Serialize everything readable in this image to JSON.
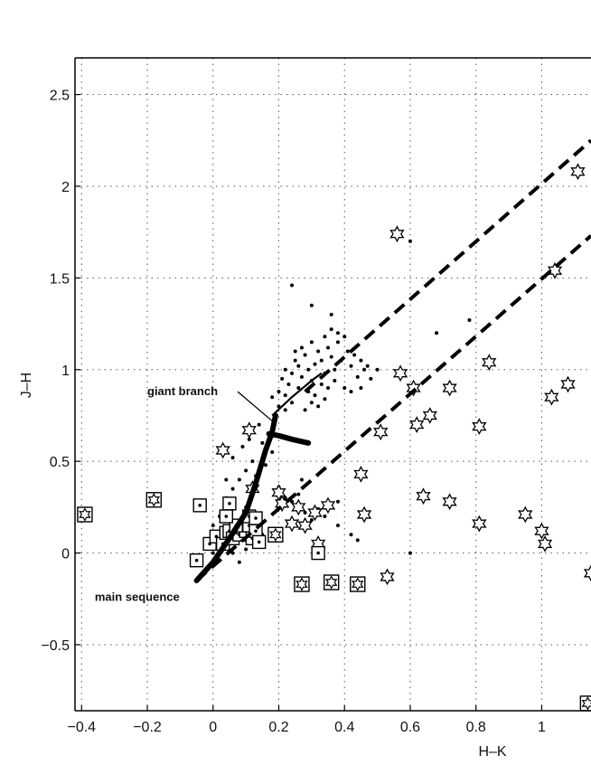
{
  "chart_data": {
    "type": "scatter",
    "xlabel": "H–K",
    "ylabel": "J–H",
    "xlim": [
      -0.42,
      1.15
    ],
    "ylim": [
      -0.86,
      2.7
    ],
    "grid": true,
    "x_ticks": [
      {
        "value": -0.4,
        "label": "−0.4"
      },
      {
        "value": -0.2,
        "label": "−0.2"
      },
      {
        "value": 0,
        "label": "0"
      },
      {
        "value": 0.2,
        "label": "0.2"
      },
      {
        "value": 0.4,
        "label": "0.4"
      },
      {
        "value": 0.6,
        "label": "0.6"
      },
      {
        "value": 0.8,
        "label": "0.8"
      },
      {
        "value": 1,
        "label": "1"
      }
    ],
    "y_ticks": [
      {
        "value": -0.5,
        "label": "−0.5"
      },
      {
        "value": 0,
        "label": "0"
      },
      {
        "value": 0.5,
        "label": "0.5"
      },
      {
        "value": 1,
        "label": "1"
      },
      {
        "value": 1.5,
        "label": "1.5"
      },
      {
        "value": 2,
        "label": "2"
      },
      {
        "value": 2.5,
        "label": "2.5"
      }
    ],
    "annotations": [
      {
        "text": "giant branch",
        "x": -0.2,
        "y": 0.86,
        "arrow_to": [
          0.18,
          0.72
        ]
      },
      {
        "text": "main sequence",
        "x": -0.36,
        "y": -0.26
      }
    ],
    "series": [
      {
        "marker": "dot",
        "points": [
          [
            0.24,
            1.46
          ],
          [
            0.3,
            1.35
          ],
          [
            0.36,
            1.3
          ],
          [
            0.6,
            1.7
          ],
          [
            0.78,
            1.27
          ],
          [
            0.68,
            1.2
          ],
          [
            0.6,
            0.0
          ],
          [
            0.18,
            0.85
          ],
          [
            0.2,
            0.88
          ],
          [
            0.21,
            0.95
          ],
          [
            0.22,
            1.0
          ],
          [
            0.23,
            0.92
          ],
          [
            0.24,
            0.98
          ],
          [
            0.25,
            1.05
          ],
          [
            0.26,
            1.02
          ],
          [
            0.27,
            0.96
          ],
          [
            0.28,
            1.08
          ],
          [
            0.29,
            1.0
          ],
          [
            0.3,
            0.94
          ],
          [
            0.31,
            1.03
          ],
          [
            0.32,
            1.1
          ],
          [
            0.33,
            1.05
          ],
          [
            0.34,
            0.98
          ],
          [
            0.35,
            1.12
          ],
          [
            0.36,
            1.07
          ],
          [
            0.37,
            1.0
          ],
          [
            0.38,
            1.15
          ],
          [
            0.39,
            1.05
          ],
          [
            0.4,
            1.18
          ],
          [
            0.41,
            1.1
          ],
          [
            0.42,
            1.02
          ],
          [
            0.43,
            1.08
          ],
          [
            0.44,
            0.96
          ],
          [
            0.45,
            1.05
          ],
          [
            0.46,
            1.0
          ],
          [
            0.47,
            1.02
          ],
          [
            0.48,
            0.95
          ],
          [
            0.5,
            1.0
          ],
          [
            0.22,
            0.86
          ],
          [
            0.26,
            0.9
          ],
          [
            0.29,
            0.88
          ],
          [
            0.31,
            0.86
          ],
          [
            0.33,
            0.92
          ],
          [
            0.35,
            0.9
          ],
          [
            0.37,
            0.94
          ],
          [
            0.4,
            0.9
          ],
          [
            0.42,
            0.88
          ],
          [
            0.45,
            0.9
          ],
          [
            0.2,
            0.8
          ],
          [
            0.22,
            0.78
          ],
          [
            0.24,
            0.82
          ],
          [
            0.28,
            0.78
          ],
          [
            0.3,
            0.82
          ],
          [
            0.32,
            0.8
          ],
          [
            0.34,
            0.84
          ],
          [
            0.36,
            1.22
          ],
          [
            0.38,
            1.2
          ],
          [
            0.34,
            1.18
          ],
          [
            0.3,
            1.15
          ],
          [
            0.27,
            1.12
          ],
          [
            0.25,
            1.1
          ],
          [
            0.14,
            0.7
          ],
          [
            0.15,
            0.6
          ],
          [
            0.12,
            0.5
          ],
          [
            0.1,
            0.45
          ],
          [
            0.08,
            0.4
          ],
          [
            0.06,
            0.35
          ],
          [
            0.04,
            0.3
          ],
          [
            0.02,
            0.2
          ],
          [
            0.0,
            0.15
          ],
          [
            0.02,
            0.1
          ],
          [
            0.05,
            0.05
          ],
          [
            0.06,
            0.0
          ],
          [
            0.08,
            -0.05
          ],
          [
            0.1,
            0.02
          ],
          [
            0.12,
            0.08
          ],
          [
            0.15,
            0.1
          ],
          [
            0.04,
            0.4
          ],
          [
            0.06,
            0.52
          ],
          [
            0.09,
            0.58
          ],
          [
            0.11,
            0.62
          ],
          [
            0.13,
            0.42
          ],
          [
            0.16,
            0.48
          ],
          [
            0.17,
            0.65
          ],
          [
            0.18,
            0.55
          ],
          [
            0.2,
            0.36
          ],
          [
            0.22,
            0.3
          ],
          [
            0.24,
            0.28
          ],
          [
            0.26,
            0.32
          ],
          [
            0.28,
            0.22
          ],
          [
            0.3,
            0.18
          ],
          [
            0.32,
            0.24
          ],
          [
            0.34,
            0.2
          ],
          [
            0.38,
            0.15
          ],
          [
            0.42,
            0.1
          ],
          [
            0.44,
            0.07
          ],
          [
            0.38,
            0.28
          ],
          [
            0.27,
            0.4
          ],
          [
            0.1,
            0.25
          ],
          [
            0.0,
            0.0
          ]
        ]
      },
      {
        "marker": "star",
        "points": [
          [
            0.56,
            1.74
          ],
          [
            1.11,
            2.08
          ],
          [
            1.04,
            1.54
          ],
          [
            0.57,
            0.98
          ],
          [
            0.61,
            0.9
          ],
          [
            0.72,
            0.9
          ],
          [
            0.84,
            1.04
          ],
          [
            1.08,
            0.92
          ],
          [
            1.03,
            0.85
          ],
          [
            0.62,
            0.7
          ],
          [
            0.66,
            0.75
          ],
          [
            0.81,
            0.69
          ],
          [
            0.51,
            0.66
          ],
          [
            0.45,
            0.43
          ],
          [
            0.64,
            0.31
          ],
          [
            0.72,
            0.28
          ],
          [
            0.46,
            0.21
          ],
          [
            0.35,
            0.26
          ],
          [
            0.28,
            0.15
          ],
          [
            0.32,
            0.05
          ],
          [
            0.81,
            0.16
          ],
          [
            0.95,
            0.21
          ],
          [
            1.0,
            0.12
          ],
          [
            1.01,
            0.05
          ],
          [
            1.15,
            -0.11
          ],
          [
            0.53,
            -0.13
          ],
          [
            0.03,
            0.56
          ],
          [
            0.11,
            0.67
          ],
          [
            0.2,
            0.33
          ],
          [
            0.21,
            0.27
          ],
          [
            0.24,
            0.16
          ],
          [
            0.26,
            0.25
          ],
          [
            0.31,
            0.22
          ],
          [
            0.12,
            0.35
          ],
          [
            0.13,
            0.08
          ]
        ]
      },
      {
        "marker": "square-dot",
        "points": [
          [
            -0.39,
            0.21
          ],
          [
            -0.18,
            0.29
          ],
          [
            -0.04,
            0.26
          ],
          [
            0.05,
            0.27
          ],
          [
            -0.05,
            -0.04
          ],
          [
            -0.01,
            0.05
          ],
          [
            0.01,
            0.09
          ],
          [
            0.03,
            0.05
          ],
          [
            0.04,
            0.11
          ],
          [
            0.05,
            0.12
          ],
          [
            0.06,
            0.08
          ],
          [
            0.08,
            0.1
          ],
          [
            0.09,
            0.14
          ],
          [
            0.1,
            0.12
          ],
          [
            0.11,
            0.15
          ],
          [
            0.11,
            0.2
          ],
          [
            0.12,
            0.08
          ],
          [
            0.13,
            0.12
          ],
          [
            0.13,
            0.19
          ],
          [
            0.14,
            0.06
          ],
          [
            0.07,
            0.15
          ],
          [
            0.04,
            0.2
          ],
          [
            0.19,
            0.1
          ],
          [
            0.32,
            0.0
          ]
        ]
      },
      {
        "marker": "square-star",
        "points": [
          [
            -0.39,
            0.21
          ],
          [
            -0.18,
            0.29
          ],
          [
            0.27,
            -0.17
          ],
          [
            0.36,
            -0.16
          ],
          [
            0.44,
            -0.17
          ],
          [
            0.19,
            0.1
          ],
          [
            1.14,
            -0.82
          ]
        ]
      },
      {
        "type": "line",
        "style": "solid-thin",
        "points": [
          [
            0.18,
            0.75
          ],
          [
            0.24,
            0.85
          ],
          [
            0.3,
            0.94
          ],
          [
            0.33,
            0.98
          ]
        ]
      },
      {
        "type": "line",
        "style": "solid-thick",
        "points": [
          [
            -0.05,
            -0.15
          ],
          [
            0.0,
            -0.05
          ],
          [
            0.05,
            0.08
          ],
          [
            0.1,
            0.22
          ],
          [
            0.13,
            0.38
          ],
          [
            0.16,
            0.56
          ],
          [
            0.18,
            0.66
          ],
          [
            0.19,
            0.75
          ]
        ]
      },
      {
        "type": "line",
        "style": "solid-thick",
        "points": [
          [
            0.17,
            0.65
          ],
          [
            0.2,
            0.64
          ],
          [
            0.24,
            0.62
          ],
          [
            0.29,
            0.6
          ]
        ]
      },
      {
        "type": "line",
        "style": "dashed",
        "points": [
          [
            0.28,
            0.88
          ],
          [
            1.15,
            2.25
          ]
        ]
      },
      {
        "type": "line",
        "style": "dashed",
        "points": [
          [
            -0.05,
            -0.15
          ],
          [
            1.15,
            1.73
          ]
        ]
      }
    ]
  }
}
